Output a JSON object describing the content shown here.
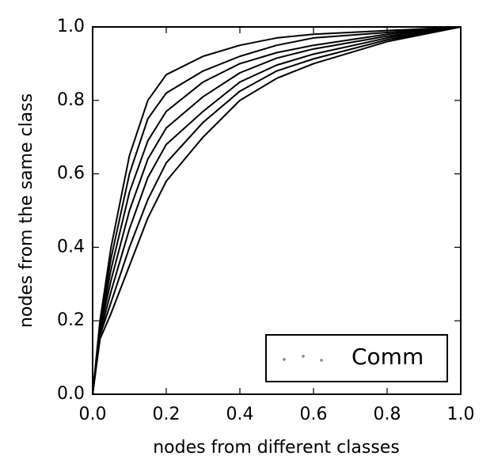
{
  "chart_data": {
    "type": "line",
    "xlabel": "nodes from different classes",
    "ylabel": "nodes from the same class",
    "xlim": [
      0,
      1
    ],
    "ylim": [
      0,
      1
    ],
    "xticks": [
      {
        "value": 0,
        "label": "0.0"
      },
      0.2,
      0.4,
      0.6,
      0.8,
      {
        "value": 1,
        "label": "1.0"
      }
    ],
    "yticks": [
      {
        "value": 0,
        "label": "0.0"
      },
      0.2,
      0.4,
      0.6,
      0.8,
      {
        "value": 1,
        "label": "1.0"
      }
    ],
    "legend": "lower right",
    "series": [
      {
        "name": "Comm",
        "color": "#000000",
        "x": [
          0,
          0.02,
          0.05,
          0.1,
          0.15,
          0.2,
          0.3,
          0.4,
          0.5,
          0.6,
          0.8,
          1,
          null,
          0,
          0.02,
          0.05,
          0.1,
          0.15,
          0.2,
          0.3,
          0.4,
          0.5,
          0.6,
          0.8,
          1,
          null,
          0,
          0.02,
          0.05,
          0.1,
          0.15,
          0.2,
          0.3,
          0.4,
          0.5,
          0.6,
          0.8,
          1,
          null,
          0,
          0.02,
          0.05,
          0.1,
          0.15,
          0.2,
          0.3,
          0.4,
          0.5,
          0.6,
          0.8,
          1,
          null,
          0,
          0.02,
          0.05,
          0.1,
          0.15,
          0.2,
          0.3,
          0.4,
          0.5,
          0.6,
          0.8,
          1,
          null,
          0,
          0.02,
          0.05,
          0.1,
          0.15,
          0.2,
          0.3,
          0.4,
          0.5,
          0.6,
          0.8,
          1,
          null,
          0,
          0.02,
          0.05,
          0.1,
          0.15,
          0.2,
          0.3,
          0.4,
          0.5,
          0.6,
          0.8,
          1
        ],
        "values": [
          0,
          0.2,
          0.4,
          0.65,
          0.8,
          0.87,
          0.92,
          0.95,
          0.97,
          0.98,
          0.99,
          1,
          null,
          0,
          0.19,
          0.37,
          0.6,
          0.75,
          0.82,
          0.88,
          0.92,
          0.95,
          0.97,
          0.985,
          1,
          null,
          0,
          0.18,
          0.34,
          0.55,
          0.69,
          0.77,
          0.85,
          0.9,
          0.93,
          0.95,
          0.98,
          1,
          null,
          0,
          0.175,
          0.31,
          0.5,
          0.64,
          0.725,
          0.81,
          0.875,
          0.915,
          0.94,
          0.975,
          1,
          null,
          0,
          0.165,
          0.28,
          0.45,
          0.59,
          0.68,
          0.77,
          0.85,
          0.896,
          0.926,
          0.97,
          1,
          null,
          0,
          0.16,
          0.25,
          0.4,
          0.53,
          0.63,
          0.74,
          0.825,
          0.88,
          0.913,
          0.965,
          1,
          null,
          0,
          0.15,
          0.22,
          0.35,
          0.48,
          0.58,
          0.7,
          0.8,
          0.86,
          0.9,
          0.96,
          1
        ]
      }
    ]
  }
}
